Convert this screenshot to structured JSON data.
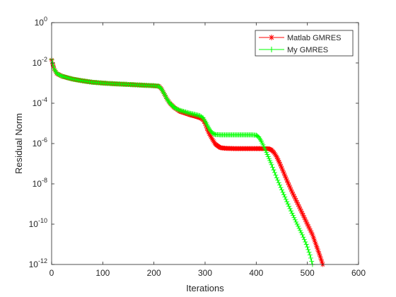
{
  "chart_data": {
    "type": "line",
    "title": "",
    "xlabel": "Iterations",
    "ylabel": "Residual Norm",
    "xlim": [
      0,
      600
    ],
    "ylim": [
      1e-12,
      1
    ],
    "yscale": "log",
    "grid": false,
    "legend_position": "top-right",
    "x_ticks": [
      {
        "value": 0,
        "label": "0"
      },
      {
        "value": 100,
        "label": "100"
      },
      {
        "value": 200,
        "label": "200"
      },
      {
        "value": 300,
        "label": "300"
      },
      {
        "value": 400,
        "label": "400"
      },
      {
        "value": 500,
        "label": "500"
      },
      {
        "value": 600,
        "label": "600"
      }
    ],
    "y_ticks": [
      {
        "value": 1,
        "base": "10",
        "exp": "0"
      },
      {
        "value": 0.01,
        "base": "10",
        "exp": "-2"
      },
      {
        "value": 0.0001,
        "base": "10",
        "exp": "-4"
      },
      {
        "value": 1e-06,
        "base": "10",
        "exp": "-6"
      },
      {
        "value": 1e-08,
        "base": "10",
        "exp": "-8"
      },
      {
        "value": 1e-10,
        "base": "10",
        "exp": "-10"
      },
      {
        "value": 1e-12,
        "base": "10",
        "exp": "-12"
      }
    ],
    "series": [
      {
        "name": "Matlab GMRES",
        "color": "#ff0000",
        "marker": "asterisk",
        "points": [
          [
            0,
            0.014
          ],
          [
            2,
            0.009
          ],
          [
            5,
            0.005
          ],
          [
            10,
            0.003
          ],
          [
            20,
            0.0022
          ],
          [
            40,
            0.0016
          ],
          [
            60,
            0.0013
          ],
          [
            80,
            0.0011
          ],
          [
            100,
            0.001
          ],
          [
            120,
            0.00093
          ],
          [
            140,
            0.00088
          ],
          [
            160,
            0.00083
          ],
          [
            180,
            0.00078
          ],
          [
            200,
            0.00074
          ],
          [
            210,
            0.0007
          ],
          [
            215,
            0.0005
          ],
          [
            220,
            0.0003
          ],
          [
            225,
            0.00017
          ],
          [
            230,
            0.00011
          ],
          [
            235,
            8e-05
          ],
          [
            240,
            6e-05
          ],
          [
            250,
            4e-05
          ],
          [
            260,
            3.3e-05
          ],
          [
            270,
            2.7e-05
          ],
          [
            280,
            2.3e-05
          ],
          [
            290,
            1.9e-05
          ],
          [
            296,
            1.5e-05
          ],
          [
            300,
            1e-05
          ],
          [
            305,
            4.5e-06
          ],
          [
            310,
            2.5e-06
          ],
          [
            315,
            1.5e-06
          ],
          [
            320,
            9.5e-07
          ],
          [
            325,
            7.5e-07
          ],
          [
            330,
            6.2e-07
          ],
          [
            340,
            5.8e-07
          ],
          [
            360,
            5.6e-07
          ],
          [
            380,
            5.6e-07
          ],
          [
            400,
            5.6e-07
          ],
          [
            415,
            5.6e-07
          ],
          [
            425,
            5.5e-07
          ],
          [
            430,
            4.8e-07
          ],
          [
            435,
            3.5e-07
          ],
          [
            440,
            2.2e-07
          ],
          [
            445,
            1.2e-07
          ],
          [
            450,
            6e-08
          ],
          [
            460,
            1.5e-08
          ],
          [
            470,
            4e-09
          ],
          [
            480,
            1.2e-09
          ],
          [
            490,
            3.5e-10
          ],
          [
            500,
            1e-10
          ],
          [
            510,
            3e-11
          ],
          [
            518,
            8e-12
          ],
          [
            525,
            2.5e-12
          ],
          [
            530,
            1e-12
          ]
        ]
      },
      {
        "name": "My GMRES",
        "color": "#00ff00",
        "marker": "plus",
        "points": [
          [
            0,
            0.015
          ],
          [
            2,
            0.01
          ],
          [
            5,
            0.005
          ],
          [
            10,
            0.003
          ],
          [
            20,
            0.0022
          ],
          [
            40,
            0.0016
          ],
          [
            60,
            0.0013
          ],
          [
            80,
            0.0011
          ],
          [
            100,
            0.001
          ],
          [
            120,
            0.00093
          ],
          [
            140,
            0.00088
          ],
          [
            160,
            0.00083
          ],
          [
            180,
            0.00078
          ],
          [
            200,
            0.00074
          ],
          [
            210,
            0.0007
          ],
          [
            215,
            0.0005
          ],
          [
            220,
            0.0003
          ],
          [
            225,
            0.00017
          ],
          [
            230,
            0.00011
          ],
          [
            235,
            8e-05
          ],
          [
            240,
            6e-05
          ],
          [
            250,
            4.5e-05
          ],
          [
            260,
            3.8e-05
          ],
          [
            270,
            3.2e-05
          ],
          [
            280,
            2.8e-05
          ],
          [
            290,
            2.4e-05
          ],
          [
            296,
            1.9e-05
          ],
          [
            300,
            1.3e-05
          ],
          [
            305,
            7.5e-06
          ],
          [
            310,
            4.5e-06
          ],
          [
            315,
            3.2e-06
          ],
          [
            320,
            2.8e-06
          ],
          [
            330,
            2.7e-06
          ],
          [
            350,
            2.7e-06
          ],
          [
            370,
            2.7e-06
          ],
          [
            390,
            2.7e-06
          ],
          [
            400,
            2.6e-06
          ],
          [
            405,
            2.1e-06
          ],
          [
            410,
            1.3e-06
          ],
          [
            415,
            7e-07
          ],
          [
            420,
            3.6e-07
          ],
          [
            425,
            1.8e-07
          ],
          [
            430,
            9e-08
          ],
          [
            440,
            2e-08
          ],
          [
            450,
            5e-09
          ],
          [
            460,
            1.3e-09
          ],
          [
            470,
            3.5e-10
          ],
          [
            480,
            1e-10
          ],
          [
            490,
            3e-11
          ],
          [
            498,
            1e-11
          ],
          [
            505,
            3e-12
          ],
          [
            510,
            1e-12
          ]
        ]
      }
    ]
  }
}
